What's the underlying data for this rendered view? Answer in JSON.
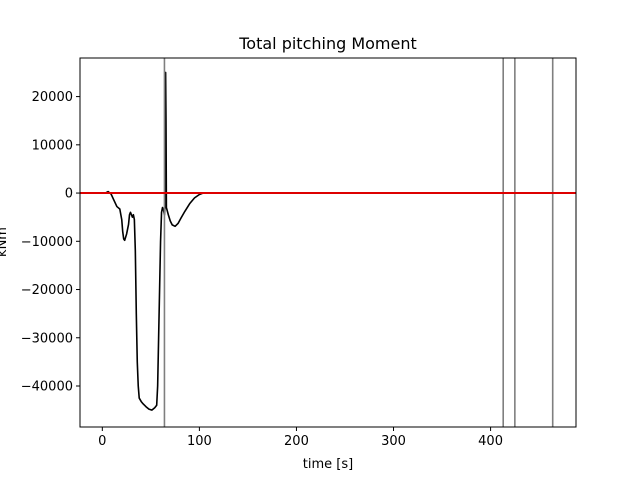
{
  "chart_data": {
    "type": "line",
    "title": "Total pitching Moment",
    "xlabel": "time [s]",
    "ylabel": "kNm",
    "xlim": [
      -23,
      488
    ],
    "ylim": [
      -48500,
      28000
    ],
    "x_ticks": [
      0,
      100,
      200,
      300,
      400
    ],
    "y_ticks": [
      -40000,
      -30000,
      -20000,
      -10000,
      0,
      10000,
      20000
    ],
    "x_tick_labels": [
      "0",
      "100",
      "200",
      "300",
      "400"
    ],
    "y_tick_labels": [
      "−40000",
      "−30000",
      "−20000",
      "−10000",
      "0",
      "10000",
      "20000"
    ],
    "grid": false,
    "colors": {
      "series": "#000000",
      "zero_line": "#dd0000",
      "event_lines": "#7f7f7f"
    },
    "series": [
      {
        "x": [
          3,
          6,
          9,
          12,
          15,
          18,
          20,
          21,
          22,
          23,
          25,
          27,
          28,
          29,
          30,
          31,
          32,
          33,
          34,
          35,
          36,
          37,
          38,
          40,
          42,
          45,
          48,
          51,
          54,
          56,
          57,
          58,
          59,
          60,
          61,
          62,
          63,
          64,
          64.5,
          65,
          65.2,
          65.6,
          66,
          68,
          70,
          72,
          75,
          78,
          81,
          85,
          90,
          95,
          100,
          104,
          110
        ],
        "y": [
          0,
          300,
          -200,
          -1500,
          -2800,
          -3300,
          -5500,
          -8000,
          -9500,
          -9800,
          -8500,
          -6500,
          -4500,
          -4000,
          -4500,
          -5000,
          -4500,
          -5500,
          -12000,
          -25000,
          -35000,
          -40000,
          -42500,
          -43200,
          -43700,
          -44300,
          -44800,
          -45000,
          -44500,
          -44000,
          -40000,
          -30000,
          -20000,
          -10000,
          -4000,
          -3000,
          -3500,
          -4500,
          -3000,
          5000,
          25000,
          15000,
          -3000,
          -4500,
          -5800,
          -6600,
          -6900,
          -6300,
          -5200,
          -3800,
          -2200,
          -1000,
          -300,
          0,
          0
        ]
      }
    ],
    "horizontal_lines": [
      0
    ],
    "vertical_lines": [
      64,
      413,
      425,
      464
    ]
  }
}
